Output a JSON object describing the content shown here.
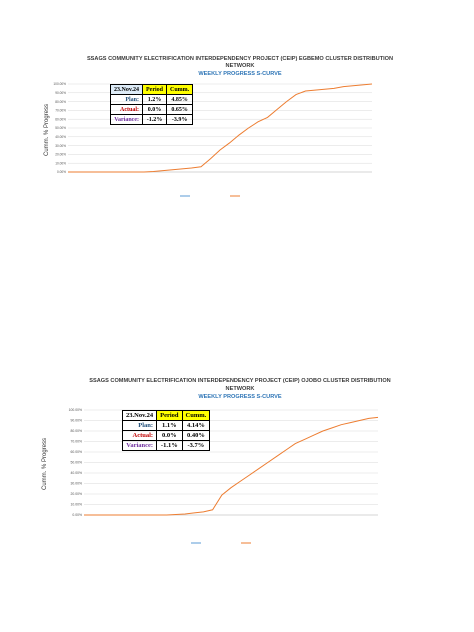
{
  "charts": [
    {
      "title_line1": "SSAGS COMMUNITY ELECTRIFICATION INTERDEPENDENCY PROJECT (CEIP) EGBEMO CLUSTER DISTRIBUTION",
      "title_line2": "NETWORK",
      "subtitle": "WEEKLY PROGRESS S-CURVE",
      "ylabel": "Cumm. % Progress",
      "table": {
        "date": "23.Nov.24",
        "col_period": "Period",
        "col_cumm": "Cumm.",
        "rows": [
          {
            "label": "Plan:",
            "period": "1.2%",
            "cumm": "4.85%"
          },
          {
            "label": "Actual:",
            "period": "0.0%",
            "cumm": "0.65%"
          },
          {
            "label": "Variance:",
            "period": "-1.2%",
            "cumm": "-3.9%"
          }
        ]
      },
      "colors": {
        "planned": "#5b9bd5",
        "actual": "#ed7d31",
        "grid": "#d9d9d9"
      }
    },
    {
      "title_line1": "SSAGS COMMUNITY ELECTRIFICATION INTERDEPENDENCY PROJECT (CEIP) OJOBO CLUSTER DISTRIBUTION",
      "title_line2": "NETWORK",
      "subtitle": "WEEKLY PROGRESS S-CURVE",
      "ylabel": "Cumm. % Progress",
      "table": {
        "date": "23.Nov.24",
        "col_period": "Period",
        "col_cumm": "Cumm.",
        "rows": [
          {
            "label": "Plan:",
            "period": "1.1%",
            "cumm": "4.14%"
          },
          {
            "label": "Actual:",
            "period": "0.0%",
            "cumm": "0.40%"
          },
          {
            "label": "Variance:",
            "period": "-1.1%",
            "cumm": "-3.7%"
          }
        ]
      },
      "colors": {
        "planned": "#5b9bd5",
        "actual": "#ed7d31",
        "grid": "#d9d9d9"
      }
    }
  ],
  "chart_data": [
    {
      "type": "line",
      "title": "SSAGS COMMUNITY ELECTRIFICATION INTERDEPENDENCY PROJECT (CEIP) EGBEMO CLUSTER DISTRIBUTION NETWORK",
      "subtitle": "WEEKLY PROGRESS S-CURVE",
      "ylabel": "Cumm. % Progress",
      "ylim": [
        0,
        100
      ],
      "yticks": [
        "0.00%",
        "10.00%",
        "20.00%",
        "30.00%",
        "40.00%",
        "50.00%",
        "60.00%",
        "70.00%",
        "80.00%",
        "90.00%",
        "100.00%"
      ],
      "grid": true,
      "legend_position": "bottom",
      "series": [
        {
          "values": [
            0,
            0,
            0,
            0,
            0,
            0,
            0,
            0,
            0,
            0.5,
            1.5,
            2.5,
            3.5,
            4.5,
            6,
            15,
            25,
            33,
            42,
            50,
            57,
            62,
            71,
            80,
            88,
            92,
            93,
            94,
            95,
            97,
            98,
            99,
            100
          ]
        }
      ]
    },
    {
      "type": "line",
      "title": "SSAGS COMMUNITY ELECTRIFICATION INTERDEPENDENCY PROJECT (CEIP) OJOBO CLUSTER DISTRIBUTION NETWORK",
      "subtitle": "WEEKLY PROGRESS S-CURVE",
      "ylabel": "Cumm. % Progress",
      "ylim": [
        0,
        100
      ],
      "yticks": [
        "0.00%",
        "10.00%",
        "20.00%",
        "30.00%",
        "40.00%",
        "50.00%",
        "60.00%",
        "70.00%",
        "80.00%",
        "90.00%",
        "100.00%"
      ],
      "grid": true,
      "legend_position": "bottom",
      "series": [
        {
          "values": [
            0,
            0,
            0,
            0,
            0,
            0,
            0,
            0,
            0,
            0,
            0.5,
            1,
            2,
            3,
            5,
            19,
            26,
            32,
            38,
            44,
            50,
            56,
            62,
            68,
            72,
            76,
            80,
            83,
            86,
            88,
            90,
            92,
            93
          ]
        }
      ]
    }
  ]
}
